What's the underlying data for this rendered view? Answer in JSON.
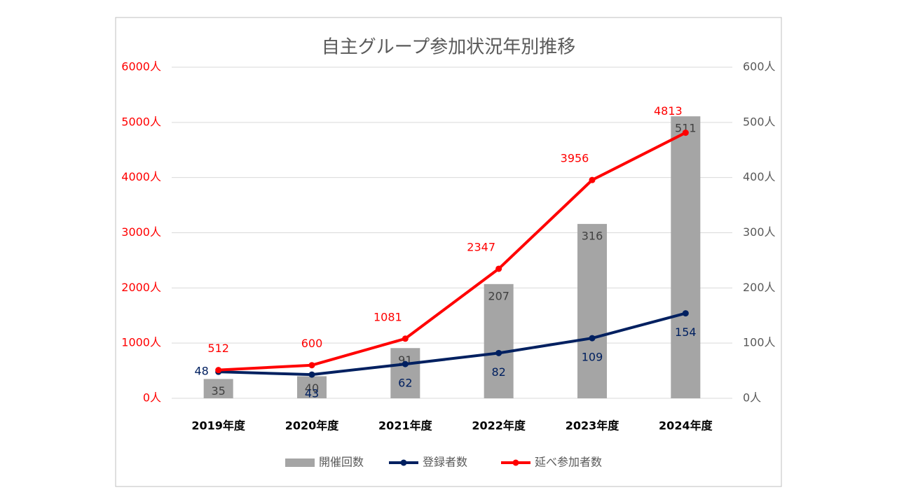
{
  "chart_data": {
    "type": "combo",
    "title": "自主グループ参加状況年別推移",
    "categories": [
      "2019年度",
      "2020年度",
      "2021年度",
      "2022年度",
      "2023年度",
      "2024年度"
    ],
    "series": [
      {
        "name": "開催回数",
        "type": "bar",
        "axis": "y2",
        "color": "#a5a5a5",
        "values": [
          35,
          40,
          91,
          207,
          316,
          511
        ]
      },
      {
        "name": "登録者数",
        "type": "line",
        "axis": "y2",
        "color": "#002060",
        "values": [
          48,
          43,
          62,
          82,
          109,
          154
        ]
      },
      {
        "name": "延べ参加者数",
        "type": "line",
        "axis": "y",
        "color": "#ff0000",
        "values": [
          512,
          600,
          1081,
          2347,
          3956,
          4813
        ]
      }
    ],
    "ylim": [
      0,
      6000
    ],
    "yticks": [
      {
        "value": 0,
        "label": "0人"
      },
      {
        "value": 1000,
        "label": "1000人"
      },
      {
        "value": 2000,
        "label": "2000人"
      },
      {
        "value": 3000,
        "label": "3000人"
      },
      {
        "value": 4000,
        "label": "4000人"
      },
      {
        "value": 5000,
        "label": "5000人"
      },
      {
        "value": 6000,
        "label": "6000人"
      }
    ],
    "y2lim": [
      0,
      600
    ],
    "y2ticks": [
      {
        "value": 0,
        "label": "0人"
      },
      {
        "value": 100,
        "label": "100人"
      },
      {
        "value": 200,
        "label": "200人"
      },
      {
        "value": 300,
        "label": "300人"
      },
      {
        "value": 400,
        "label": "400人"
      },
      {
        "value": 500,
        "label": "500人"
      },
      {
        "value": 600,
        "label": "600人"
      }
    ],
    "grid": true,
    "legend": "bottom"
  }
}
